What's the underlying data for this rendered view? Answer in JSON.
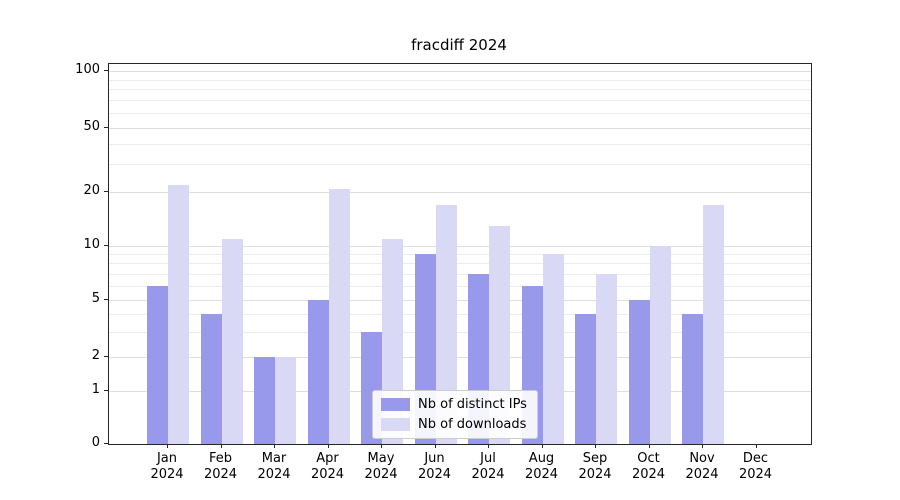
{
  "title": "fracdiff 2024",
  "chart_data": {
    "type": "bar",
    "title": "fracdiff 2024",
    "categories": [
      "Jan",
      "Feb",
      "Mar",
      "Apr",
      "May",
      "Jun",
      "Jul",
      "Aug",
      "Sep",
      "Oct",
      "Nov",
      "Dec"
    ],
    "year_label": "2024",
    "series": [
      {
        "name": "Nb of distinct IPs",
        "color": "#9999ec",
        "values": [
          6,
          4,
          2,
          5,
          3,
          9,
          7,
          6,
          4,
          5,
          4,
          0
        ]
      },
      {
        "name": "Nb of downloads",
        "color": "#d9d9f6",
        "values": [
          22,
          11,
          2,
          21,
          11,
          17,
          13,
          9,
          7,
          10,
          17,
          0
        ]
      }
    ],
    "yscale": "log-with-zero",
    "yticks": [
      0,
      1,
      2,
      5,
      10,
      20,
      50,
      100
    ],
    "y_minor_gridlines": [
      3,
      4,
      6,
      7,
      8,
      9,
      30,
      40,
      60,
      70,
      80,
      90
    ],
    "ylim": [
      0,
      100
    ],
    "grid": true,
    "legend_position": "lower center"
  }
}
